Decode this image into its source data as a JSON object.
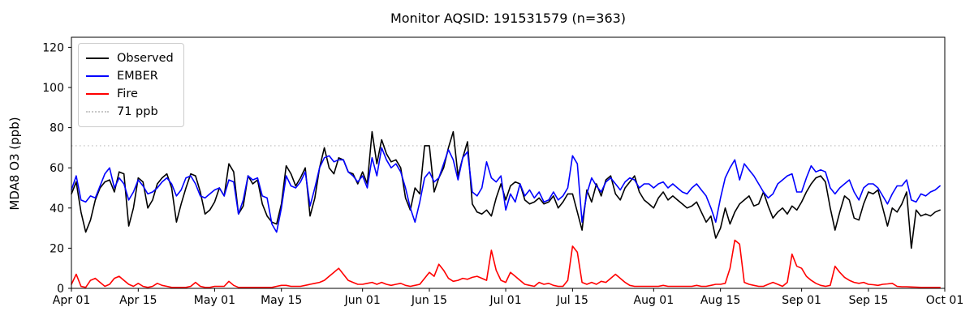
{
  "title": "Monitor AQSID: 191531579 (n=363)",
  "y_axis": {
    "label": "MDA8 O3 (ppb)",
    "ticks": [
      0,
      20,
      40,
      60,
      80,
      100,
      120
    ]
  },
  "x_axis": {
    "tick_labels": [
      "Apr 01",
      "Apr 15",
      "May 01",
      "May 15",
      "Jun 01",
      "Jun 15",
      "Jul 01",
      "Jul 15",
      "Aug 01",
      "Aug 15",
      "Sep 01",
      "Sep 15",
      "Oct 01"
    ],
    "tick_days": [
      0,
      14,
      30,
      44,
      61,
      75,
      91,
      105,
      122,
      136,
      153,
      167,
      183
    ]
  },
  "legend": [
    {
      "label": "Observed",
      "color": "#000000",
      "style": "solid"
    },
    {
      "label": "EMBER",
      "color": "#0000ff",
      "style": "solid"
    },
    {
      "label": "Fire",
      "color": "#ff0000",
      "style": "solid"
    },
    {
      "label": "71 ppb",
      "color": "#c8c8c8",
      "style": "dotted"
    }
  ],
  "chart_data": {
    "type": "line",
    "title": "Monitor AQSID: 191531579 (n=363)",
    "xlabel": "",
    "ylabel": "MDA8 O3 (ppb)",
    "x_unit": "daily values, day index 0 = Apr 01, day 182 = Sep 30",
    "x_start_label": "Apr 01",
    "x_end_label": "Oct 01",
    "xlim": [
      0,
      183
    ],
    "ylim": [
      0,
      125
    ],
    "grid": false,
    "legend_position": "upper left",
    "reference_line": {
      "label": "71 ppb",
      "value": 71,
      "color": "#c8c8c8",
      "style": "dotted"
    },
    "series": [
      {
        "name": "Observed",
        "color": "#000000",
        "values": [
          47,
          53,
          38,
          28,
          34,
          44,
          50,
          53,
          54,
          48,
          58,
          57,
          31,
          40,
          55,
          53,
          40,
          44,
          52,
          55,
          57,
          50,
          33,
          42,
          50,
          57,
          56,
          48,
          37,
          39,
          43,
          50,
          46,
          62,
          58,
          37,
          41,
          56,
          52,
          54,
          42,
          36,
          33,
          32,
          42,
          61,
          57,
          51,
          55,
          60,
          36,
          45,
          60,
          70,
          60,
          57,
          65,
          64,
          58,
          57,
          52,
          58,
          52,
          78,
          62,
          74,
          67,
          63,
          64,
          60,
          45,
          39,
          50,
          47,
          71,
          71,
          48,
          55,
          60,
          70,
          78,
          56,
          65,
          73,
          42,
          38,
          37,
          39,
          36,
          45,
          52,
          44,
          51,
          53,
          52,
          44,
          42,
          43,
          45,
          42,
          43,
          46,
          40,
          43,
          47,
          47,
          38,
          29,
          49,
          43,
          52,
          46,
          54,
          56,
          47,
          44,
          50,
          53,
          56,
          48,
          44,
          42,
          40,
          45,
          48,
          44,
          46,
          44,
          42,
          40,
          41,
          43,
          38,
          33,
          36,
          25,
          30,
          40,
          32,
          38,
          42,
          44,
          46,
          41,
          42,
          48,
          41,
          35,
          38,
          40,
          37,
          41,
          39,
          43,
          48,
          52,
          55,
          56,
          53,
          40,
          29,
          38,
          46,
          44,
          35,
          34,
          42,
          48,
          47,
          49,
          40,
          31,
          40,
          38,
          42,
          48,
          20,
          39,
          36,
          37,
          36,
          38,
          39
        ]
      },
      {
        "name": "EMBER",
        "color": "#0000ff",
        "values": [
          49,
          56,
          44,
          43,
          46,
          45,
          51,
          57,
          60,
          50,
          55,
          52,
          44,
          48,
          54,
          51,
          47,
          48,
          50,
          53,
          55,
          52,
          46,
          49,
          55,
          56,
          52,
          46,
          45,
          47,
          49,
          50,
          46,
          54,
          53,
          37,
          44,
          56,
          54,
          55,
          46,
          45,
          32,
          28,
          40,
          56,
          51,
          50,
          53,
          58,
          41,
          50,
          60,
          65,
          66,
          63,
          64,
          64,
          58,
          56,
          53,
          56,
          50,
          65,
          56,
          70,
          64,
          60,
          62,
          58,
          50,
          40,
          33,
          43,
          55,
          58,
          53,
          55,
          62,
          69,
          64,
          54,
          65,
          68,
          48,
          46,
          50,
          63,
          55,
          53,
          56,
          39,
          47,
          43,
          52,
          46,
          49,
          45,
          48,
          43,
          44,
          48,
          44,
          46,
          50,
          66,
          62,
          33,
          47,
          55,
          51,
          48,
          53,
          55,
          52,
          49,
          53,
          55,
          54,
          50,
          52,
          52,
          50,
          52,
          53,
          50,
          52,
          50,
          48,
          47,
          50,
          52,
          49,
          46,
          40,
          33,
          45,
          55,
          60,
          64,
          54,
          62,
          59,
          56,
          52,
          48,
          45,
          47,
          52,
          54,
          56,
          57,
          48,
          48,
          55,
          61,
          58,
          59,
          58,
          50,
          47,
          50,
          52,
          54,
          48,
          44,
          50,
          52,
          52,
          50,
          46,
          42,
          47,
          51,
          51,
          54,
          44,
          43,
          47,
          46,
          48,
          49,
          51
        ]
      },
      {
        "name": "Fire",
        "color": "#ff0000",
        "values": [
          2,
          7,
          1,
          0.5,
          4,
          5,
          3,
          1,
          2,
          5,
          6,
          4,
          2,
          1,
          2.5,
          1,
          0.5,
          1,
          2.5,
          1.5,
          1,
          0.5,
          0.5,
          0.5,
          0.5,
          1,
          3,
          1,
          0.5,
          0.5,
          1,
          1,
          1,
          3.5,
          1.5,
          0.5,
          0.5,
          0.5,
          0.5,
          0.5,
          0.5,
          0.5,
          0.5,
          1,
          1.5,
          1.5,
          1,
          1,
          1,
          1.5,
          2,
          2.5,
          3,
          4,
          6,
          8,
          10,
          7,
          4,
          3,
          2,
          2,
          2.5,
          3,
          2,
          3,
          2,
          1.5,
          2,
          2.5,
          1.5,
          1,
          1.5,
          2,
          5,
          8,
          6,
          12,
          9,
          5,
          3.5,
          4,
          5,
          4.5,
          5.5,
          6,
          5,
          4,
          19,
          9,
          4,
          3,
          8,
          6,
          4,
          2,
          1.5,
          1,
          3,
          2,
          2.5,
          1.5,
          1,
          1,
          4,
          21,
          18,
          3,
          2,
          3,
          2,
          3.5,
          3,
          5,
          7,
          5,
          3,
          1.5,
          1,
          1,
          1,
          1,
          1,
          1,
          1.5,
          1,
          1,
          1,
          1,
          1,
          1,
          1.5,
          1,
          1,
          1.5,
          2,
          2,
          2.5,
          10,
          24,
          22,
          3,
          2,
          1.5,
          1,
          1,
          2,
          3,
          2,
          1,
          3,
          17,
          11,
          10,
          6,
          4,
          2.5,
          1.5,
          1,
          1.5,
          11,
          8,
          5.5,
          4,
          3,
          2.5,
          3,
          2,
          1.8,
          1.5,
          2,
          2.2,
          2.5,
          1,
          0.8,
          0.8,
          0.7,
          0.6,
          0.5,
          0.5,
          0.5,
          0.5,
          0.5
        ]
      }
    ]
  }
}
